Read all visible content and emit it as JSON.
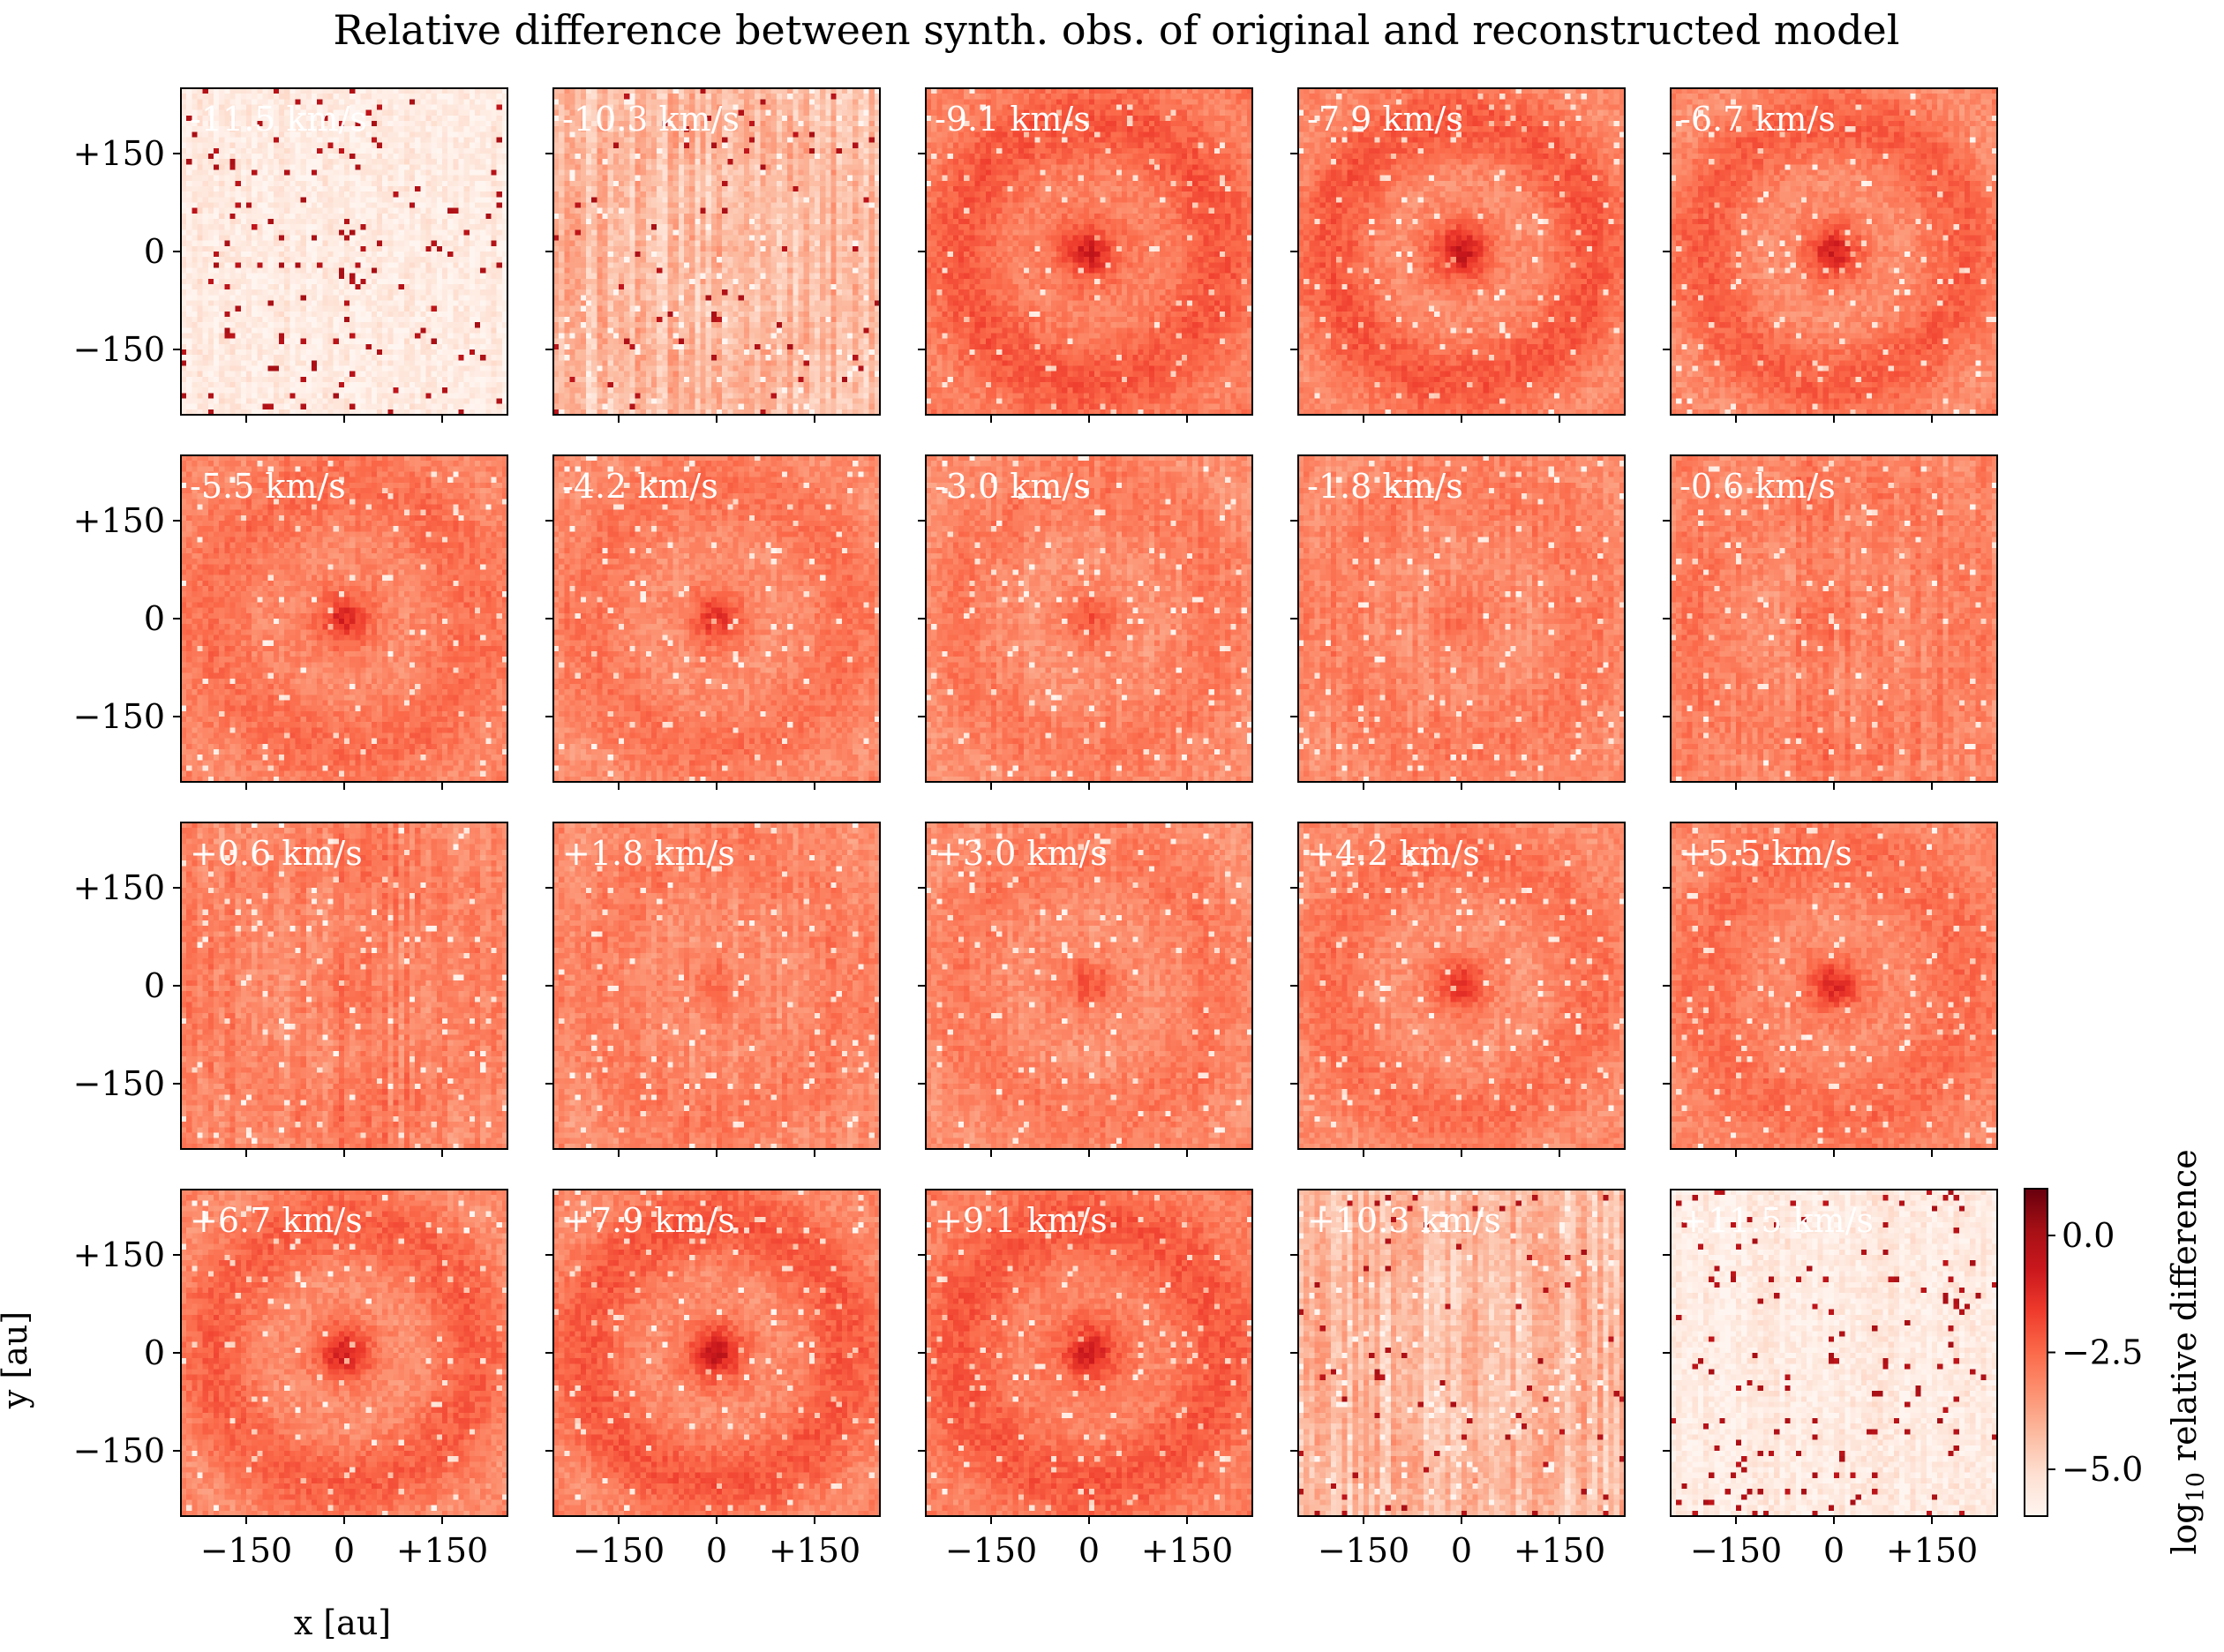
{
  "chart_data": {
    "type": "heatmap",
    "title": "Relative difference between synth. obs. of original and reconstructed model",
    "xlabel": "x [au]",
    "ylabel": "y [au]",
    "xlim": [
      -250,
      250
    ],
    "ylim": [
      -250,
      250
    ],
    "x_ticks": [
      -150,
      0,
      150
    ],
    "y_ticks": [
      -150,
      0,
      150
    ],
    "x_tick_labels": [
      "−150",
      "0",
      "+150"
    ],
    "y_tick_labels": [
      "+150",
      "0",
      "−150"
    ],
    "grid": false,
    "panel_layout": {
      "rows": 4,
      "cols": 5
    },
    "colormap": "Reds",
    "colorbar": {
      "label": "log10 relative difference",
      "label_main": "log",
      "label_sub": "10",
      "label_rest": " relative difference",
      "range": [
        -6.0,
        1.0
      ],
      "ticks": [
        0.0,
        -2.5,
        -5.0
      ],
      "tick_labels": [
        "0.0",
        "−2.5",
        "−5.0"
      ]
    },
    "panels": [
      {
        "label": "-11.5 km/s",
        "velocity": -11.5,
        "mean_level": -5.6,
        "center_peak": 0.0,
        "ring_strength": 0.0,
        "outlier_frac": 0.035,
        "stripe_strength": 0.5
      },
      {
        "label": "-10.3 km/s",
        "velocity": -10.3,
        "mean_level": -4.3,
        "center_peak": 0.0,
        "ring_strength": 0.2,
        "outlier_frac": 0.02,
        "stripe_strength": 1.2
      },
      {
        "label": "-9.1 km/s",
        "velocity": -9.1,
        "mean_level": -2.6,
        "center_peak": 1.3,
        "ring_strength": 0.45,
        "outlier_frac": 0.0,
        "stripe_strength": 0.1
      },
      {
        "label": "-7.9 km/s",
        "velocity": -7.9,
        "mean_level": -2.7,
        "center_peak": 1.6,
        "ring_strength": 0.55,
        "outlier_frac": 0.0,
        "stripe_strength": 0.1
      },
      {
        "label": "-6.7 km/s",
        "velocity": -6.7,
        "mean_level": -2.8,
        "center_peak": 1.4,
        "ring_strength": 0.5,
        "outlier_frac": 0.0,
        "stripe_strength": 0.1
      },
      {
        "label": "-5.5 km/s",
        "velocity": -5.5,
        "mean_level": -2.9,
        "center_peak": 1.5,
        "ring_strength": 0.3,
        "outlier_frac": 0.0,
        "stripe_strength": 0.2
      },
      {
        "label": "-4.2 km/s",
        "velocity": -4.2,
        "mean_level": -3.0,
        "center_peak": 1.3,
        "ring_strength": 0.3,
        "outlier_frac": 0.0,
        "stripe_strength": 0.2
      },
      {
        "label": "-3.0 km/s",
        "velocity": -3.0,
        "mean_level": -3.1,
        "center_peak": 0.8,
        "ring_strength": 0.25,
        "outlier_frac": 0.0,
        "stripe_strength": 0.35
      },
      {
        "label": "-1.8 km/s",
        "velocity": -1.8,
        "mean_level": -3.1,
        "center_peak": 0.3,
        "ring_strength": 0.2,
        "outlier_frac": 0.0,
        "stripe_strength": 0.5
      },
      {
        "label": "-0.6 km/s",
        "velocity": -0.6,
        "mean_level": -3.0,
        "center_peak": 0.1,
        "ring_strength": 0.15,
        "outlier_frac": 0.0,
        "stripe_strength": 0.7
      },
      {
        "label": "+0.6 km/s",
        "velocity": 0.6,
        "mean_level": -3.0,
        "center_peak": 0.1,
        "ring_strength": 0.15,
        "outlier_frac": 0.0,
        "stripe_strength": 0.8
      },
      {
        "label": "+1.8 km/s",
        "velocity": 1.8,
        "mean_level": -3.1,
        "center_peak": 0.3,
        "ring_strength": 0.2,
        "outlier_frac": 0.0,
        "stripe_strength": 0.5
      },
      {
        "label": "+3.0 km/s",
        "velocity": 3.0,
        "mean_level": -3.1,
        "center_peak": 0.8,
        "ring_strength": 0.25,
        "outlier_frac": 0.0,
        "stripe_strength": 0.35
      },
      {
        "label": "+4.2 km/s",
        "velocity": 4.2,
        "mean_level": -3.0,
        "center_peak": 1.3,
        "ring_strength": 0.35,
        "outlier_frac": 0.0,
        "stripe_strength": 0.2
      },
      {
        "label": "+5.5 km/s",
        "velocity": 5.5,
        "mean_level": -2.9,
        "center_peak": 1.5,
        "ring_strength": 0.3,
        "outlier_frac": 0.0,
        "stripe_strength": 0.2
      },
      {
        "label": "+6.7 km/s",
        "velocity": 6.7,
        "mean_level": -2.8,
        "center_peak": 1.4,
        "ring_strength": 0.5,
        "outlier_frac": 0.0,
        "stripe_strength": 0.1
      },
      {
        "label": "+7.9 km/s",
        "velocity": 7.9,
        "mean_level": -2.7,
        "center_peak": 1.6,
        "ring_strength": 0.55,
        "outlier_frac": 0.0,
        "stripe_strength": 0.1
      },
      {
        "label": "+9.1 km/s",
        "velocity": 9.1,
        "mean_level": -2.6,
        "center_peak": 1.3,
        "ring_strength": 0.45,
        "outlier_frac": 0.0,
        "stripe_strength": 0.1
      },
      {
        "label": "+10.3 km/s",
        "velocity": 10.3,
        "mean_level": -4.3,
        "center_peak": 0.0,
        "ring_strength": 0.2,
        "outlier_frac": 0.02,
        "stripe_strength": 1.2
      },
      {
        "label": "+11.5 km/s",
        "velocity": 11.5,
        "mean_level": -5.6,
        "center_peak": 0.0,
        "ring_strength": 0.0,
        "outlier_frac": 0.035,
        "stripe_strength": 0.5
      }
    ]
  }
}
